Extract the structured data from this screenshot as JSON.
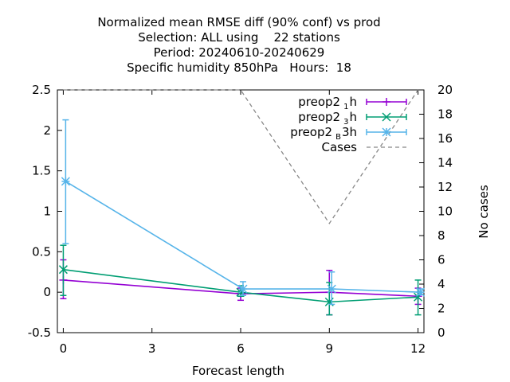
{
  "chart_data": {
    "type": "line",
    "title_lines": [
      "Normalized mean RMSE diff (90% conf) vs prod",
      "Selection: ALL using    22 stations",
      "Period: 20240610-20240629",
      "Specific humidity 850hPa   Hours:  18"
    ],
    "xlabel": "Forecast length",
    "ylabel": "",
    "y2label": "No cases",
    "xlim": [
      -0.2,
      12.2
    ],
    "ylim": [
      -0.5,
      2.5
    ],
    "y2lim": [
      0,
      20
    ],
    "xticks": [
      "0",
      "3",
      "6",
      "9",
      "12"
    ],
    "yticks": [
      "-0.5",
      "0",
      "0.5",
      "1",
      "1.5",
      "2",
      "2.5"
    ],
    "y2ticks": [
      "0",
      "2",
      "4",
      "6",
      "8",
      "10",
      "12",
      "14",
      "16",
      "18",
      "20"
    ],
    "legend_position": "top-right",
    "series": [
      {
        "legend_parts": [
          "preop2",
          "1",
          "h"
        ],
        "color": "#9400d3",
        "marker": "plus",
        "x": [
          0,
          6,
          9,
          12
        ],
        "y": [
          0.15,
          -0.02,
          0.0,
          -0.05
        ],
        "err_low": [
          -0.08,
          -0.1,
          -0.28,
          -0.15
        ],
        "err_high": [
          0.4,
          0.05,
          0.27,
          0.05
        ]
      },
      {
        "legend_parts": [
          "preop2",
          "3",
          "h"
        ],
        "color": "#009e73",
        "marker": "cross",
        "x": [
          0,
          6,
          9,
          12
        ],
        "y": [
          0.28,
          0.0,
          -0.12,
          -0.06
        ],
        "err_low": [
          -0.04,
          -0.05,
          -0.28,
          -0.28
        ],
        "err_high": [
          0.58,
          0.08,
          0.12,
          0.15
        ]
      },
      {
        "legend_parts": [
          "preop2",
          "B",
          "3h"
        ],
        "color": "#56b4e9",
        "marker": "star",
        "x": [
          0.08,
          6.08,
          9.08,
          12.08
        ],
        "y": [
          1.37,
          0.04,
          0.04,
          0.0
        ],
        "err_low": [
          0.6,
          -0.04,
          -0.15,
          -0.03
        ],
        "err_high": [
          2.13,
          0.13,
          0.25,
          0.04
        ]
      },
      {
        "legend_parts": [
          "Cases",
          "",
          ""
        ],
        "color": "#888888",
        "marker": "none",
        "dashed": true,
        "axis": "y2",
        "x": [
          0,
          6,
          9,
          12
        ],
        "y": [
          20,
          20,
          9,
          20
        ]
      }
    ]
  }
}
